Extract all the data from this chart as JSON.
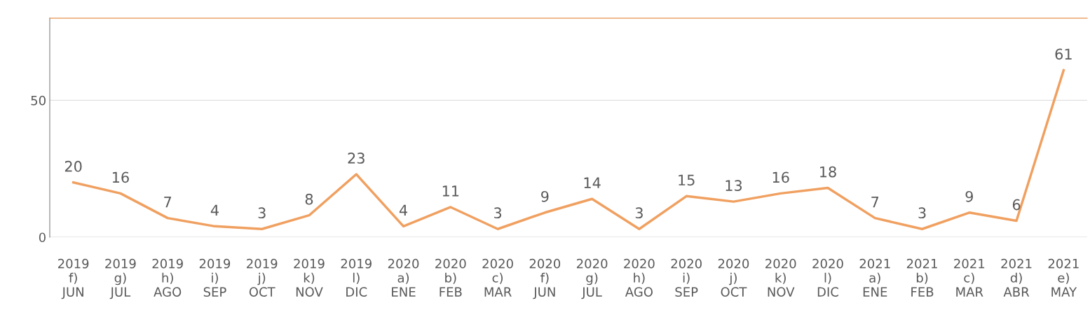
{
  "chart_data": {
    "type": "line",
    "categories": [
      "2019\nf)\nJUN",
      "2019\ng)\nJUL",
      "2019\nh)\nAGO",
      "2019\ni)\nSEP",
      "2019\nj)\nOCT",
      "2019\nk)\nNOV",
      "2019\nl)\nDIC",
      "2020\na)\nENE",
      "2020\nb)\nFEB",
      "2020\nc)\nMAR",
      "2020\nf)\nJUN",
      "2020\ng)\nJUL",
      "2020\nh)\nAGO",
      "2020\ni)\nSEP",
      "2020\nj)\nOCT",
      "2020\nk)\nNOV",
      "2020\nl)\nDIC",
      "2021\na)\nENE",
      "2021\nb)\nFEB",
      "2021\nc)\nMAR",
      "2021\nd)\nABR",
      "2021\ne)\nMAY"
    ],
    "series": [
      {
        "color": "#f0a060",
        "values": [
          20,
          16,
          7,
          4,
          3,
          8,
          23,
          4,
          11,
          3,
          9,
          14,
          3,
          15,
          13,
          16,
          18,
          7,
          3,
          9,
          6,
          61
        ]
      }
    ],
    "ylim": [
      0,
      80
    ],
    "yticks": [
      0,
      50
    ],
    "grid": "y",
    "data_labels": true,
    "marker": "none",
    "line_style": "solid",
    "legend": false
  }
}
